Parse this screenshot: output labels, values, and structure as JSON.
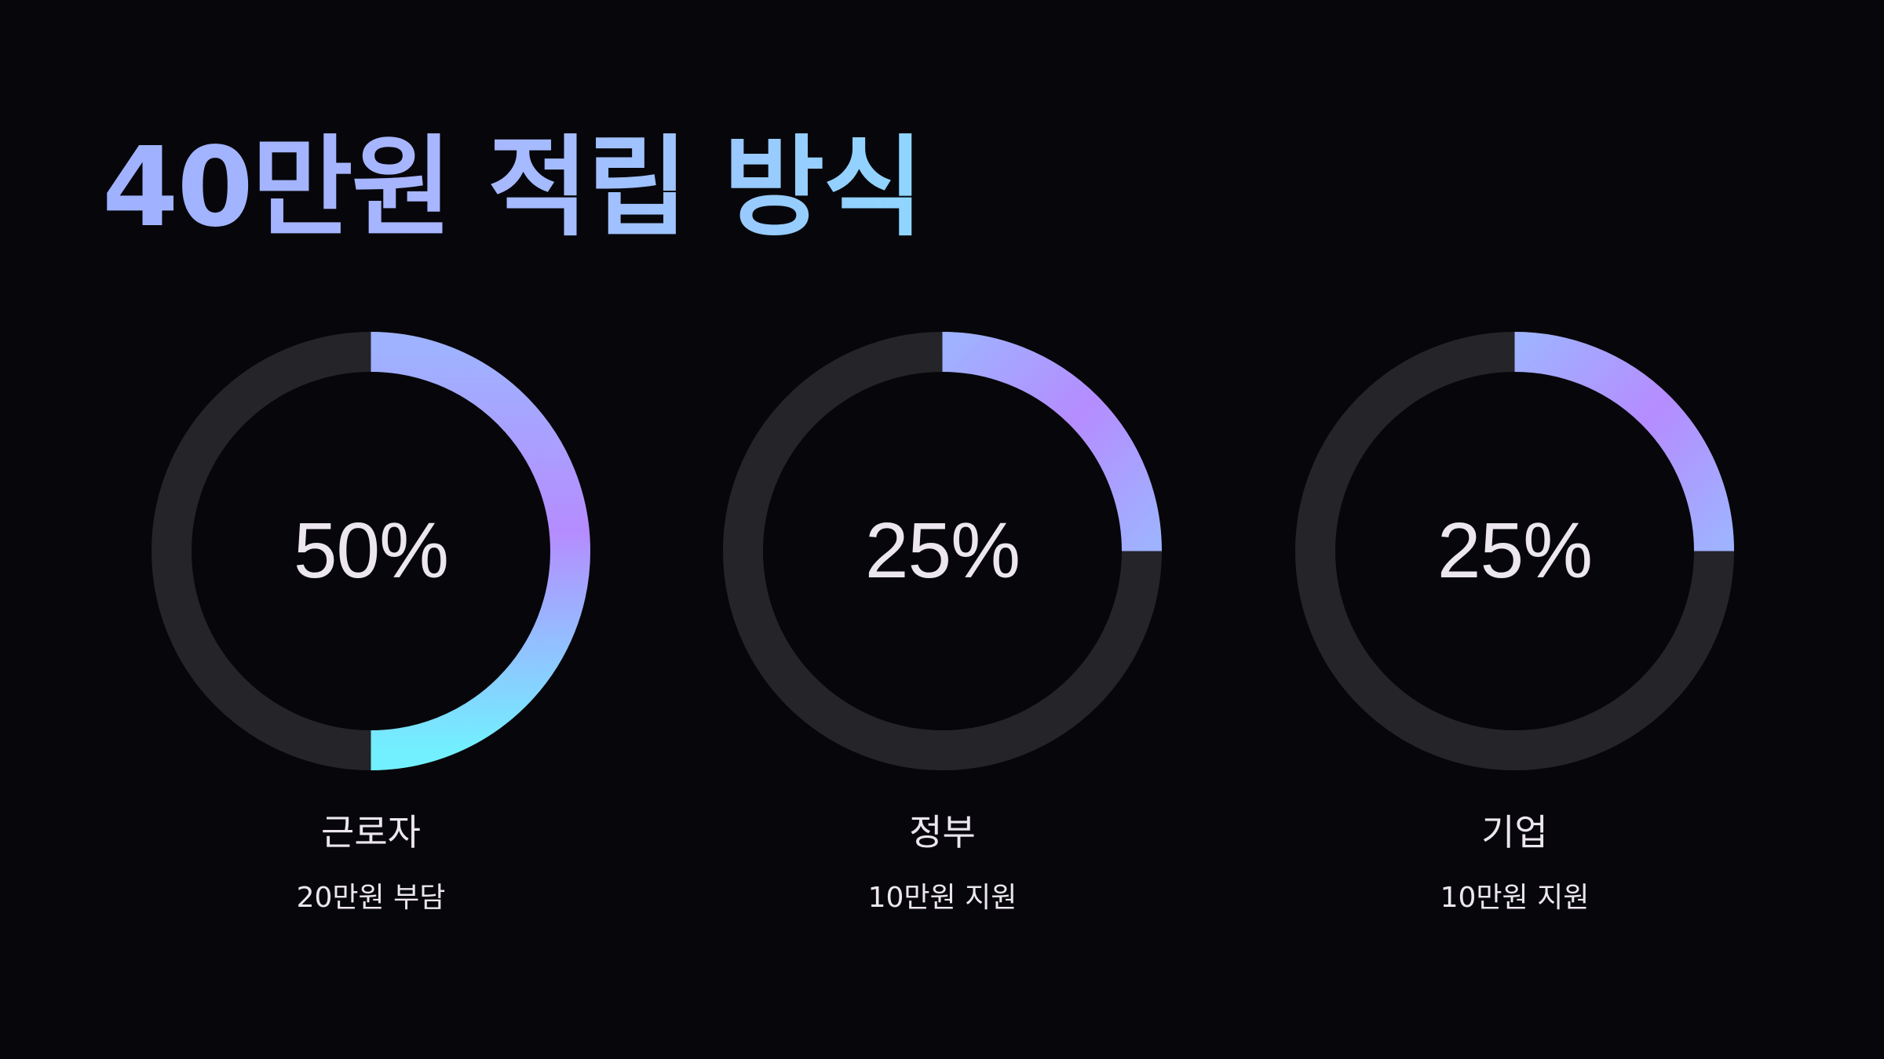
{
  "title": "40만원 적립 방식",
  "colors": {
    "background": "#07070b",
    "track": "#252429",
    "arc_start": "#72f0ff",
    "arc_mid": "#b58cff",
    "arc_end": "#9fb2ff"
  },
  "chart_data": [
    {
      "type": "pie",
      "value": 50,
      "label_pct": "50%",
      "label": "근로자",
      "sub": "20만원 부담"
    },
    {
      "type": "pie",
      "value": 25,
      "label_pct": "25%",
      "label": "정부",
      "sub": "10만원 지원"
    },
    {
      "type": "pie",
      "value": 25,
      "label_pct": "25%",
      "label": "기업",
      "sub": "10만원 지원"
    }
  ]
}
